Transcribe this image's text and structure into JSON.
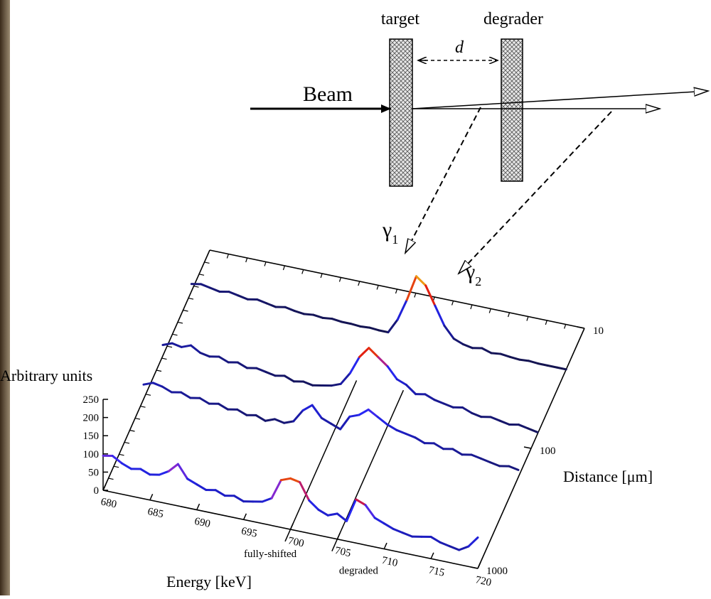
{
  "setup": {
    "target": "target",
    "degrader": "degrader",
    "distance_symbol": "d",
    "beam": "Beam",
    "gammas": [
      {
        "symbol": "γ",
        "index": "1"
      },
      {
        "symbol": "γ",
        "index": "2"
      }
    ]
  },
  "chart_data": {
    "type": "waterfall",
    "y_label": "Arbitrary units",
    "x_label": "Energy [keV]",
    "z_label": "Distance [μm]",
    "x": [
      680,
      681,
      682,
      683,
      684,
      685,
      686,
      687,
      688,
      689,
      690,
      691,
      692,
      693,
      694,
      695,
      696,
      697,
      698,
      699,
      700,
      701,
      702,
      703,
      704,
      705,
      706,
      707,
      708,
      709,
      710,
      711,
      712,
      713,
      714,
      715,
      716,
      717,
      718,
      719,
      720
    ],
    "xlim": [
      680,
      720
    ],
    "xticks": [
      680,
      685,
      690,
      695,
      700,
      705,
      710,
      715,
      720
    ],
    "ylim": [
      0,
      250
    ],
    "yticks": [
      0,
      50,
      100,
      150,
      200,
      250
    ],
    "zlim": [
      1000,
      10
    ],
    "zticks": [
      10,
      100,
      1000
    ],
    "zscale": "log",
    "series": [
      {
        "distance": 22,
        "values": [
          20,
          25,
          20,
          15,
          20,
          15,
          10,
          15,
          10,
          5,
          10,
          5,
          2,
          5,
          2,
          5,
          2,
          2,
          0,
          2,
          0,
          0,
          40,
          100,
          170,
          150,
          100,
          50,
          20,
          10,
          5,
          10,
          2,
          5,
          2,
          0,
          2,
          0,
          0,
          0,
          0
        ]
      },
      {
        "distance": 76,
        "values": [
          30,
          40,
          35,
          45,
          30,
          25,
          30,
          20,
          25,
          15,
          20,
          15,
          10,
          15,
          5,
          10,
          5,
          10,
          15,
          25,
          60,
          110,
          140,
          120,
          100,
          70,
          60,
          40,
          45,
          35,
          30,
          25,
          30,
          20,
          15,
          20,
          15,
          10,
          15,
          10,
          5
        ]
      },
      {
        "distance": 174,
        "values": [
          40,
          50,
          45,
          35,
          40,
          30,
          35,
          25,
          30,
          20,
          25,
          15,
          20,
          10,
          20,
          15,
          25,
          60,
          80,
          50,
          40,
          30,
          70,
          80,
          100,
          85,
          70,
          60,
          55,
          50,
          40,
          45,
          35,
          40,
          30,
          35,
          30,
          25,
          20,
          25,
          20
        ]
      },
      {
        "distance": 1000,
        "values": [
          95,
          100,
          85,
          75,
          80,
          70,
          75,
          90,
          115,
          80,
          70,
          60,
          65,
          55,
          60,
          50,
          55,
          60,
          75,
          130,
          140,
          135,
          90,
          70,
          60,
          70,
          55,
          120,
          110,
          80,
          70,
          60,
          55,
          50,
          55,
          60,
          50,
          45,
          40,
          55,
          85
        ]
      }
    ],
    "annotations": [
      {
        "text": "fully-shifted",
        "x": 700
      },
      {
        "text": "degraded",
        "x": 705
      }
    ]
  }
}
